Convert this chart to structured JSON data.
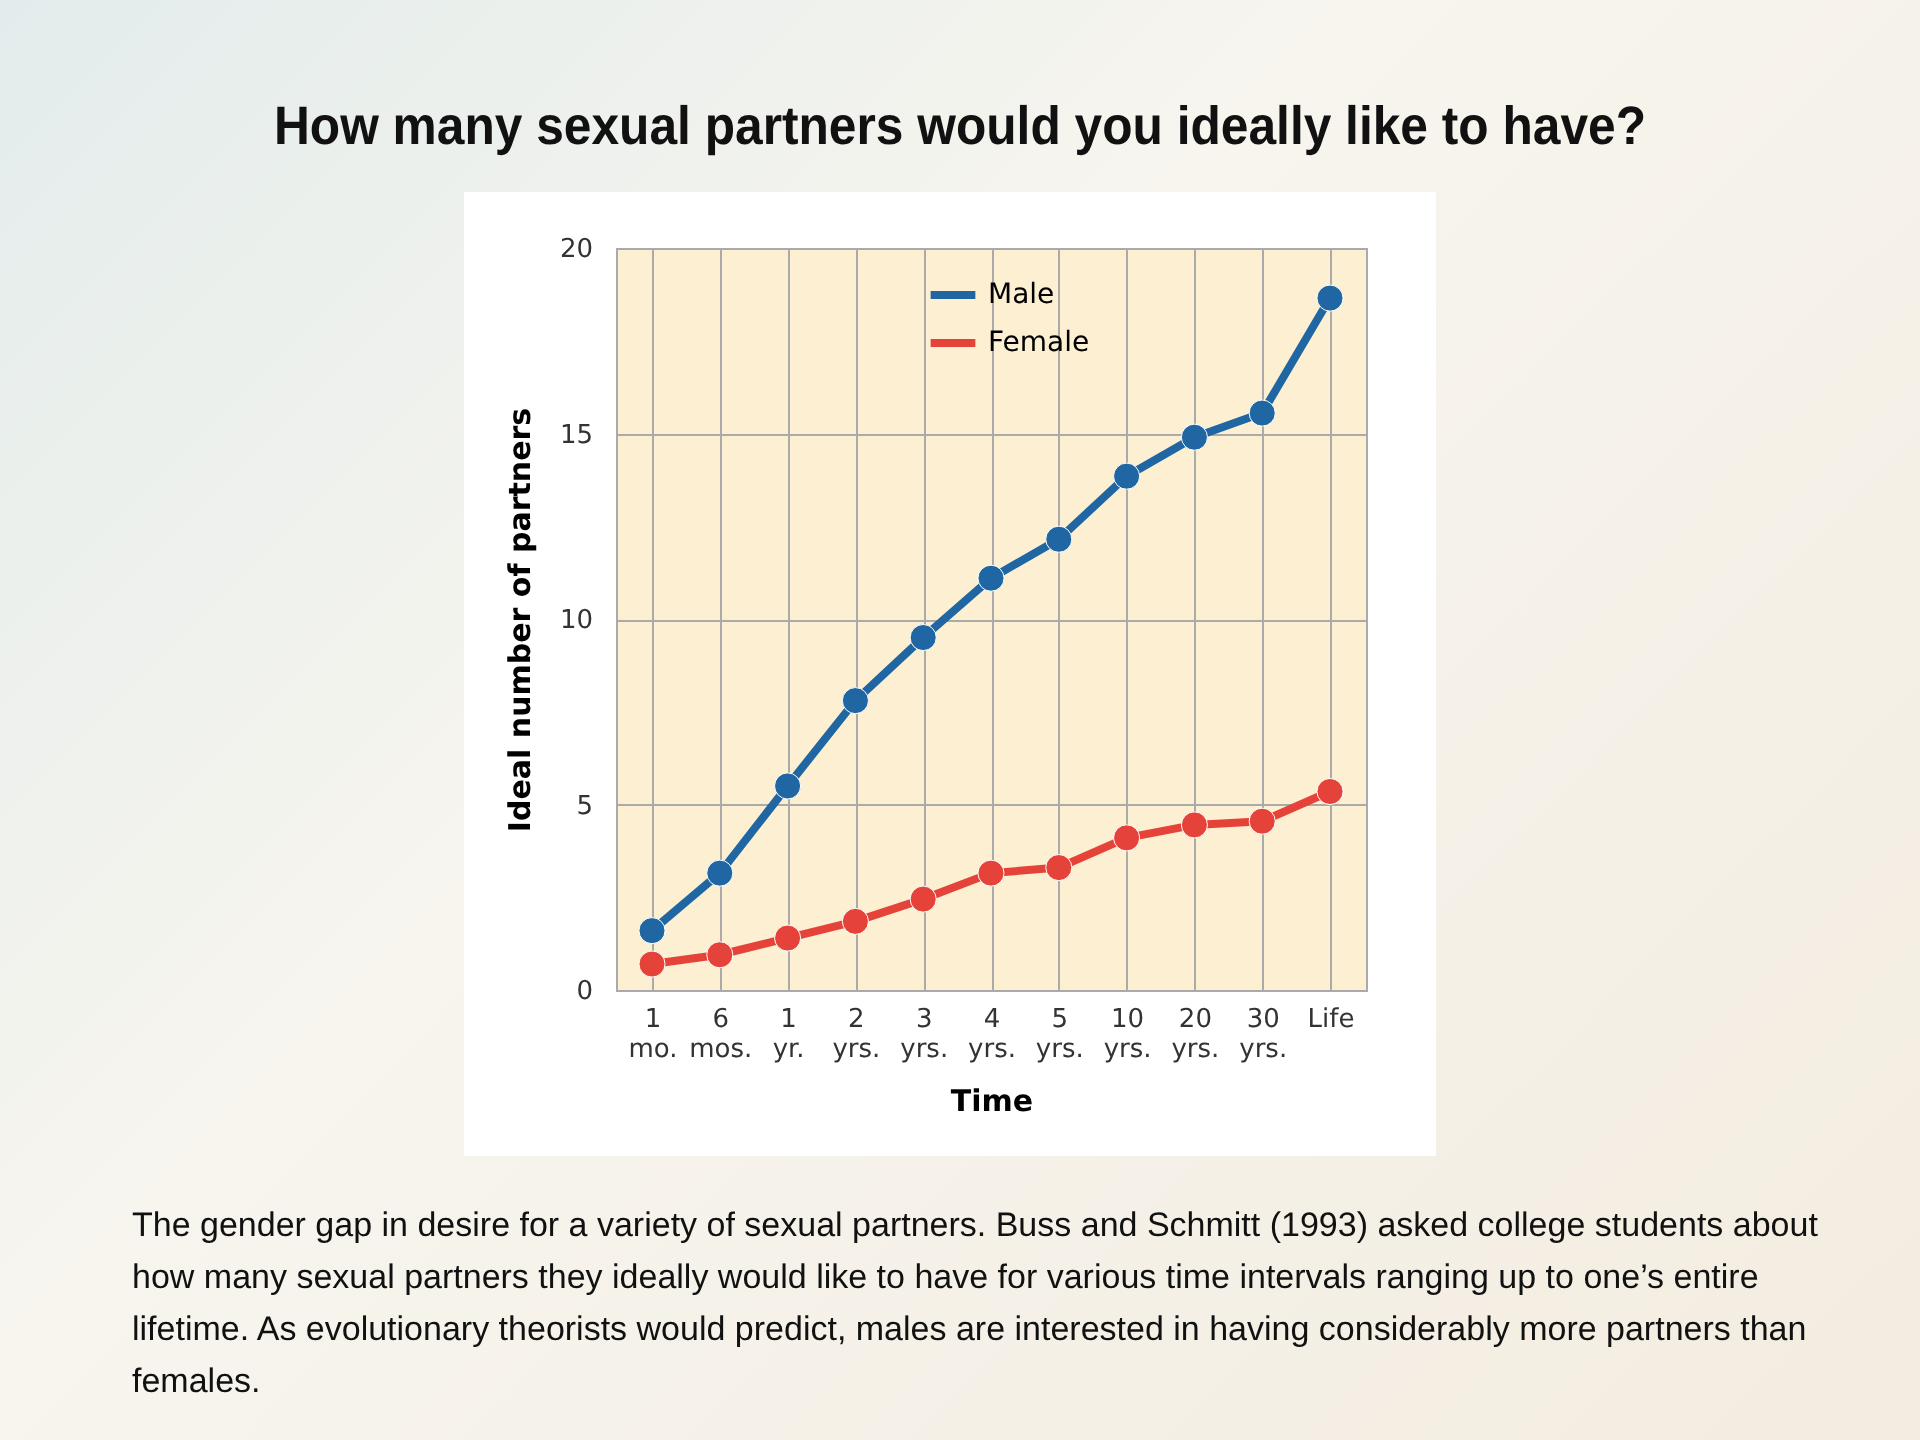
{
  "chart_data": {
    "type": "line",
    "title": "How many sexual partners would you ideally like to have?",
    "xlabel": "Time",
    "ylabel": "Ideal number of partners",
    "categories": [
      "1 mo.",
      "6 mos.",
      "1 yr.",
      "2 yrs.",
      "3 yrs.",
      "4 yrs.",
      "5 yrs.",
      "10 yrs.",
      "20 yrs.",
      "30 yrs.",
      "Life"
    ],
    "series": [
      {
        "name": "Male",
        "color": "#1f66a3",
        "values": [
          1.6,
          3.15,
          5.5,
          7.8,
          9.5,
          11.1,
          12.15,
          13.85,
          14.9,
          15.55,
          18.65
        ]
      },
      {
        "name": "Female",
        "color": "#e5423a",
        "values": [
          0.7,
          0.95,
          1.4,
          1.85,
          2.45,
          3.15,
          3.3,
          4.1,
          4.45,
          4.55,
          5.35
        ]
      }
    ],
    "ylim": [
      0,
      20
    ],
    "yticks": [
      0,
      5,
      10,
      15,
      20
    ],
    "grid": true,
    "legend": "top right",
    "marker": "circle",
    "line_style": "solid",
    "annotations": [
      "The gender gap in desire for a variety of sexual partners. Buss and Schmitt (1993) asked college students about how many sexual partners they ideally would like to have for various time intervals ranging up to one’s entire lifetime. As evolutionary theorists would predict, males are interested in having considerably more partners than females."
    ]
  }
}
